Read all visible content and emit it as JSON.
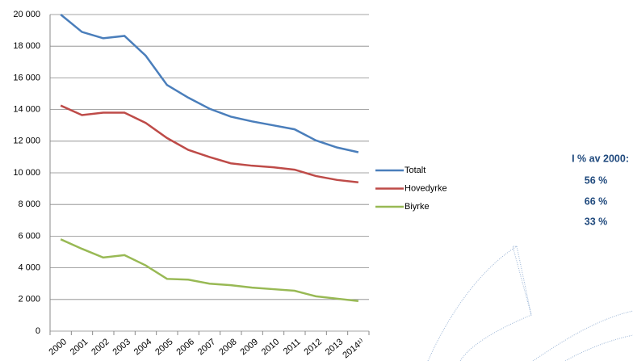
{
  "chart_data": {
    "type": "line",
    "categories": [
      "2000",
      "2001",
      "2002",
      "2003",
      "2004",
      "2005",
      "2006",
      "2007",
      "2008",
      "2009",
      "2010",
      "2011",
      "2012",
      "2013",
      "2014¹⁾"
    ],
    "series": [
      {
        "name": "Totalt",
        "color": "#4a7ebb",
        "values": [
          20000,
          18900,
          18500,
          18650,
          17400,
          15550,
          14750,
          14050,
          13550,
          13250,
          13000,
          12750,
          12050,
          11600,
          11300
        ]
      },
      {
        "name": "Hovedyrke",
        "color": "#be4b48",
        "values": [
          14250,
          13650,
          13800,
          13800,
          13150,
          12200,
          11450,
          11000,
          10600,
          10450,
          10350,
          10200,
          9800,
          9550,
          9400
        ]
      },
      {
        "name": "Biyrke",
        "color": "#98b954",
        "values": [
          5800,
          5200,
          4650,
          4800,
          4150,
          3300,
          3250,
          3000,
          2900,
          2750,
          2650,
          2550,
          2200,
          2050,
          1900
        ]
      }
    ],
    "ylim": [
      0,
      20000
    ],
    "yticks": [
      0,
      {
        "value": 2000,
        "label": "2 000"
      },
      {
        "value": 4000,
        "label": "4 000"
      },
      {
        "value": 6000,
        "label": "6 000"
      },
      {
        "value": 8000,
        "label": "8 000"
      },
      {
        "value": 10000,
        "label": "10 000"
      },
      {
        "value": 12000,
        "label": "12 000"
      },
      {
        "value": 14000,
        "label": "14 000"
      },
      {
        "value": 16000,
        "label": "16 000"
      },
      {
        "value": 18000,
        "label": "18 000"
      },
      {
        "value": 20000,
        "label": "20 000"
      }
    ],
    "grid": true,
    "annotation": {
      "title": "I % av 2000:",
      "items": [
        "56 %",
        "66 %",
        "33 %"
      ]
    }
  }
}
